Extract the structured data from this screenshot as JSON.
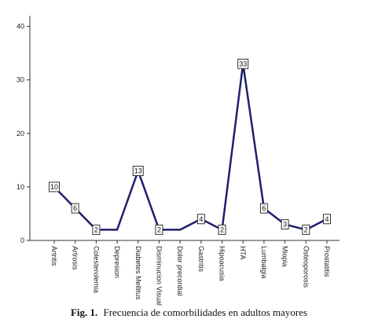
{
  "chart_data": {
    "type": "line",
    "categories": [
      "Artritis",
      "Artrosis",
      "Colesterolemia",
      "Depresion",
      "Diabetes Mellitus",
      "Disminucion Visual",
      "Dolor precordial",
      "Gastritis",
      "Hipoacusia",
      "HTA",
      "Lumbalgia",
      "Miopia",
      "Osteoporosis",
      "Prostatitis"
    ],
    "values": [
      10,
      6,
      2,
      2,
      13,
      2,
      2,
      4,
      2,
      33,
      6,
      3,
      2,
      4
    ],
    "data_labels": [
      "10",
      "6",
      "2",
      "",
      "13",
      "2",
      "",
      "4",
      "2",
      "33",
      "6",
      "3",
      "2",
      "4"
    ],
    "yticks": [
      "0",
      "10",
      "20",
      "30",
      "40"
    ],
    "ylim": [
      0,
      42
    ],
    "grid": false,
    "colors": {
      "line": "#1f1f6e",
      "axis": "#333333",
      "label_border": "#333333"
    }
  },
  "caption": {
    "figure_number": "Fig. 1.",
    "text": "Frecuencia de comorbilidades en adultos mayores"
  }
}
